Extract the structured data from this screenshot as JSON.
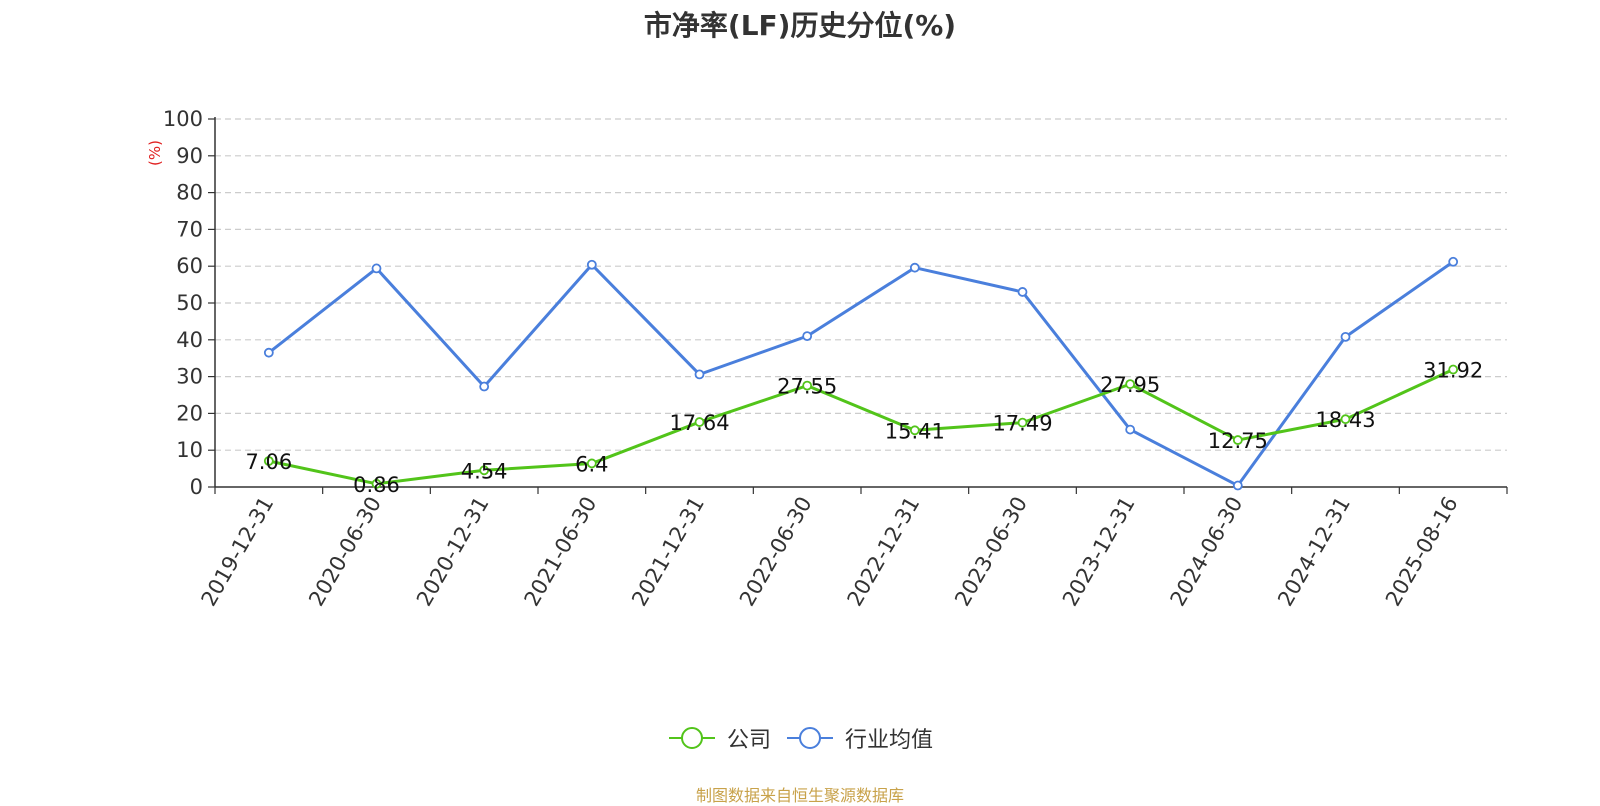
{
  "chart_data": {
    "type": "line",
    "title": "市净率(LF)历史分位(%)",
    "ylabel": "(%)",
    "xlabel": "",
    "ylim": [
      0,
      100
    ],
    "yticks": [
      0,
      10,
      20,
      30,
      40,
      50,
      60,
      70,
      80,
      90,
      100
    ],
    "grid": true,
    "legend_position": "bottom",
    "categories": [
      "2019-12-31",
      "2020-06-30",
      "2020-12-31",
      "2021-06-30",
      "2021-12-31",
      "2022-06-30",
      "2022-12-31",
      "2023-06-30",
      "2023-12-31",
      "2024-06-30",
      "2024-12-31",
      "2025-08-16"
    ],
    "series": [
      {
        "name": "公司",
        "color": "#52c41a",
        "values": [
          7.06,
          0.86,
          4.54,
          6.4,
          17.64,
          27.55,
          15.41,
          17.49,
          27.95,
          12.75,
          18.43,
          31.92
        ],
        "show_labels": true
      },
      {
        "name": "行业均值",
        "color": "#4a7fdc",
        "values": [
          36.5,
          59.4,
          27.3,
          60.4,
          30.6,
          41.0,
          59.6,
          53.0,
          15.6,
          0.4,
          40.8,
          61.2
        ],
        "show_labels": false
      }
    ]
  },
  "footer": {
    "source": "制图数据来自恒生聚源数据库"
  }
}
